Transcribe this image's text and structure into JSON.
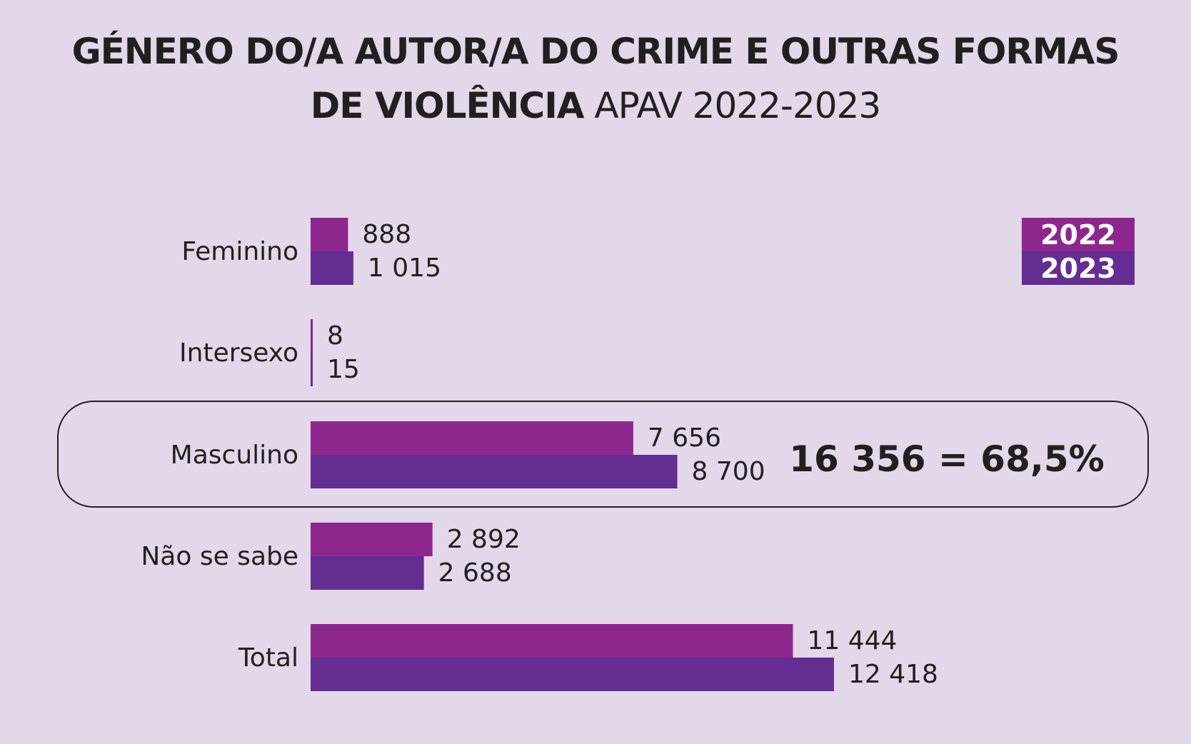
{
  "header": {
    "title_bold_1": "GÉNERO DO/A AUTOR/A DO CRIME E OUTRAS FORMAS",
    "title_bold_2": "DE VIOLÊNCIA",
    "title_light_2": " APAV 2022-2023"
  },
  "colors": {
    "background": "#e3d7ea",
    "series_2022": "#8e278d",
    "series_2023": "#642d91",
    "text": "#231f20"
  },
  "chart_data": {
    "type": "bar",
    "orientation": "horizontal",
    "title": "GÉNERO DO/A AUTOR/A DO CRIME E OUTRAS FORMAS DE VIOLÊNCIA APAV 2022-2023",
    "categories": [
      "Feminino",
      "Intersexo",
      "Masculino",
      "Não se sabe",
      "Total"
    ],
    "series": [
      {
        "name": "2022",
        "values": [
          888,
          8,
          7656,
          2892,
          11444
        ],
        "labels": [
          "888",
          "8",
          "7 656",
          "2 892",
          "11 444"
        ]
      },
      {
        "name": "2023",
        "values": [
          1015,
          15,
          8700,
          2688,
          12418
        ],
        "labels": [
          "1 015",
          "15",
          "8 700",
          "2 688",
          "12 418"
        ]
      }
    ],
    "xlim": [
      0,
      12418
    ],
    "grid": false,
    "legend": "top-right",
    "annotation": {
      "category": "Masculino",
      "text": "16 356 = 68,5%"
    }
  }
}
